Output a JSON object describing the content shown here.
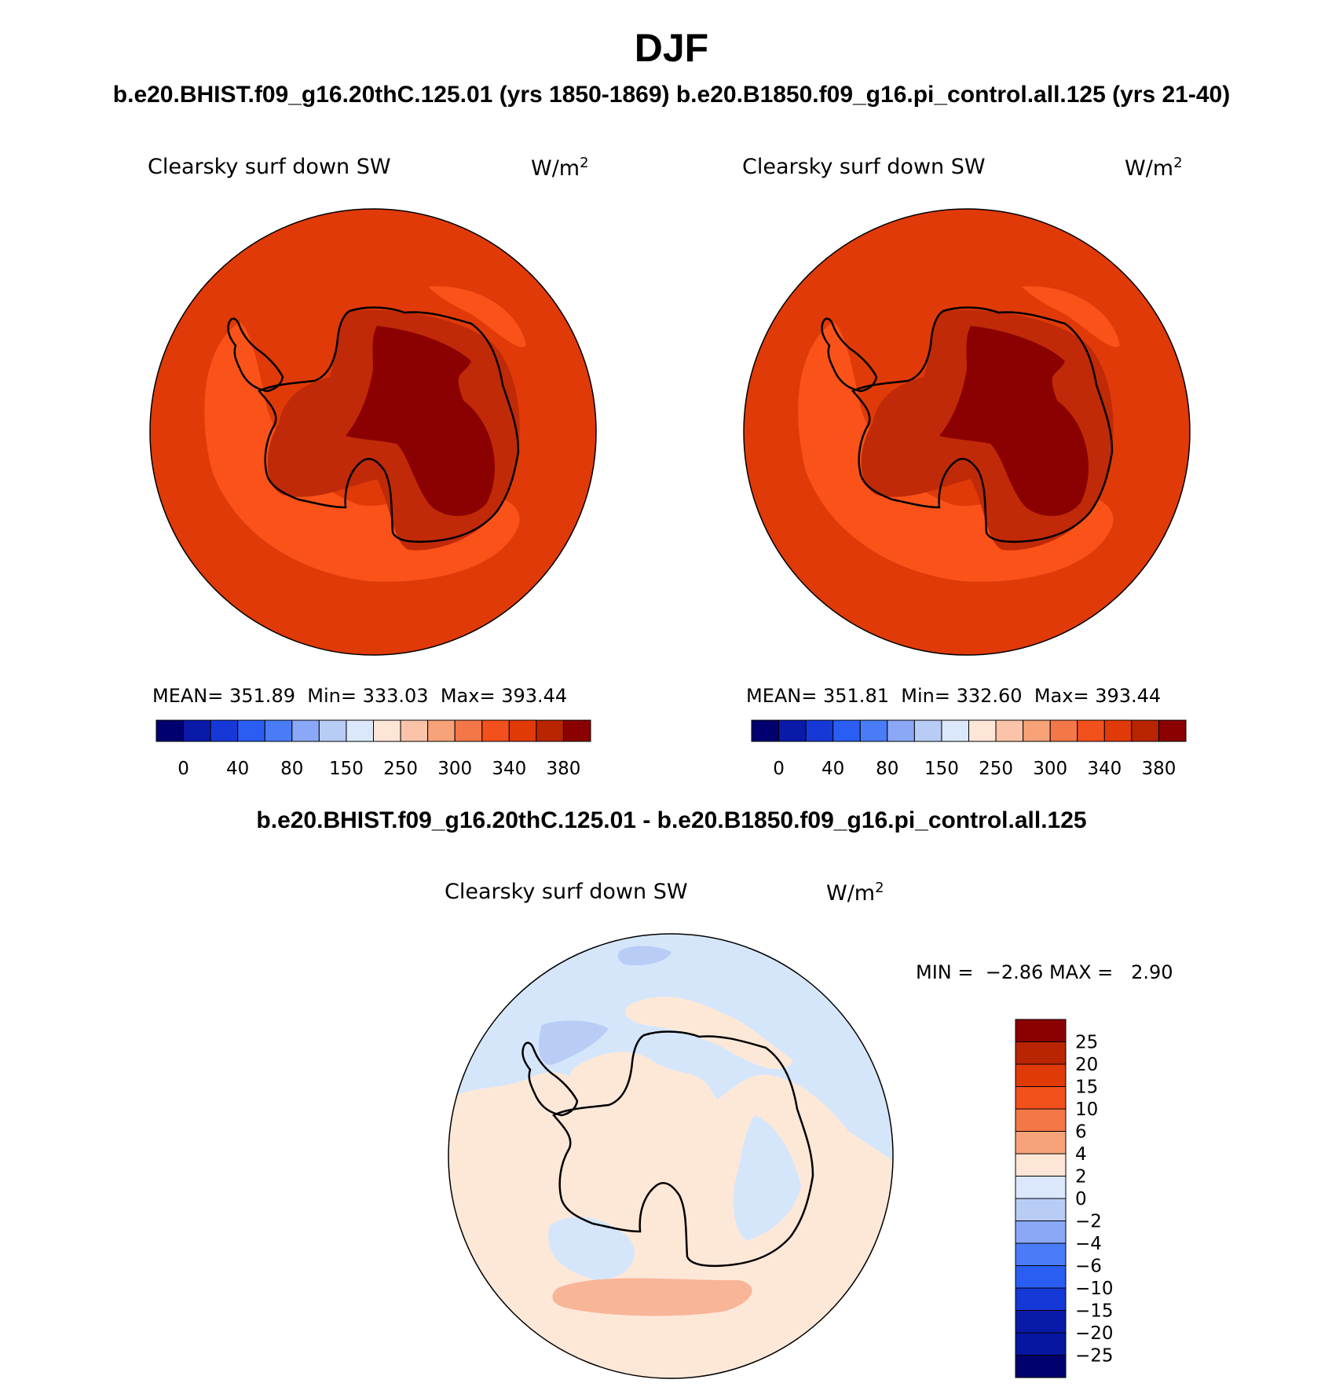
{
  "header": {
    "season": "DJF",
    "cases": "b.e20.BHIST.f09_g16.20thC.125.01 (yrs 1850-1869)  b.e20.B1850.f09_g16.pi_control.all.125 (yrs 21-40)"
  },
  "panels": [
    {
      "variable": "Clearsky surf down SW",
      "units": "W/m",
      "units_sup": "2",
      "mean_label": "MEAN=",
      "mean": "351.89",
      "min_label": "Min=",
      "min": "333.03",
      "max_label": "Max=",
      "max": "393.44"
    },
    {
      "variable": "Clearsky surf down SW",
      "units": "W/m",
      "units_sup": "2",
      "mean_label": "MEAN=",
      "mean": "351.81",
      "min_label": "Min=",
      "min": "332.60",
      "max_label": "Max=",
      "max": "393.44"
    }
  ],
  "abs_colorbar": {
    "colors": [
      "#00006e",
      "#0a1aa8",
      "#1638d6",
      "#2a5ef2",
      "#4a7cf7",
      "#8aa8f6",
      "#b8ccf6",
      "#dbe8fb",
      "#fde6d6",
      "#fbc4aa",
      "#f8a27a",
      "#f47748",
      "#f2501c",
      "#e03a08",
      "#b82500",
      "#8b0000"
    ],
    "tick_labels": [
      "0",
      "40",
      "80",
      "150",
      "250",
      "300",
      "340",
      "380"
    ]
  },
  "difference": {
    "title": "b.e20.BHIST.f09_g16.20thC.125.01 - b.e20.B1850.f09_g16.pi_control.all.125",
    "variable": "Clearsky surf down SW",
    "units": "W/m",
    "units_sup": "2",
    "min_label": "MIN =",
    "min": "−2.86",
    "max_label": "MAX =",
    "max": "2.90",
    "colors_top_to_bottom": [
      "#8b0000",
      "#b82500",
      "#e03a08",
      "#f2501c",
      "#f47748",
      "#f8a27a",
      "#fde6d6",
      "#dbe8fb",
      "#b8ccf6",
      "#8aa8f6",
      "#4a7cf7",
      "#2a5ef2",
      "#1638d6",
      "#0a1aa8",
      "#0616a0",
      "#00006e"
    ],
    "tick_labels_top_to_bottom": [
      "25",
      "20",
      "15",
      "10",
      "6",
      "4",
      "2",
      "0",
      "−2",
      "−4",
      "−6",
      "−10",
      "−15",
      "−20",
      "−25"
    ]
  },
  "map_colors": {
    "outer": "#e03a08",
    "ocean_band": "#fb5219",
    "coast_band": "#c02a08",
    "interior": "#8b0000",
    "diff_pos": "#fde8d8",
    "diff_neg": "#d5e6fb",
    "diff_neg2": "#b8ccf6",
    "diff_pos2": "#f8b598"
  }
}
